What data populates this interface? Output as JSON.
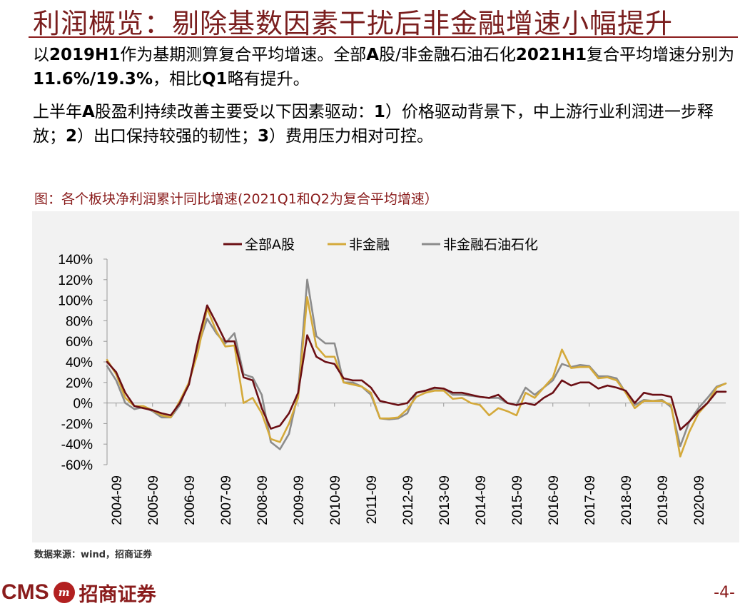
{
  "slide": {
    "title": "利润概览：剔除基数因素干扰后非金融增速小幅提升",
    "para1": [
      {
        "t": "以",
        "b": false
      },
      {
        "t": "2019H1",
        "b": true
      },
      {
        "t": "作为基期测算复合平均增速。全部",
        "b": false
      },
      {
        "t": "A",
        "b": true
      },
      {
        "t": "股/非金融石油石化",
        "b": false
      },
      {
        "t": "2021H1",
        "b": true
      },
      {
        "t": "复合平均增速分别为",
        "b": false
      },
      {
        "t": "11.6%/19.3%",
        "b": true
      },
      {
        "t": "，相比",
        "b": false
      },
      {
        "t": "Q1",
        "b": true
      },
      {
        "t": "略有提升。",
        "b": false
      }
    ],
    "para2": [
      {
        "t": "上半年",
        "b": false
      },
      {
        "t": "A",
        "b": true
      },
      {
        "t": "股盈利持续改善主要受以下因素驱动：",
        "b": false
      },
      {
        "t": "1",
        "b": true
      },
      {
        "t": "）价格驱动背景下，中上游行业利润进一步释放；",
        "b": false
      },
      {
        "t": "2",
        "b": true
      },
      {
        "t": "）出口保持较强的韧性；",
        "b": false
      },
      {
        "t": "3",
        "b": true
      },
      {
        "t": "）费用压力相对可控。",
        "b": false
      }
    ],
    "chart_caption": "图：各个板块净利润累计同比增速(2021Q1和Q2为复合平均增速）",
    "source": "数据来源：wind，招商证券",
    "brand_cms": "CMS",
    "brand_logo": "m",
    "brand_name": "招商证券",
    "page_number": "-4-"
  },
  "colors": {
    "title": "#7a1e1e",
    "all_a": "#6b0f14",
    "non_fin": "#d4a93a",
    "non_fin_ex_oil": "#8c8c8c",
    "chart_bg": "#f2f2f2"
  },
  "chart_data": {
    "type": "line",
    "title": "",
    "xlabel": "",
    "ylabel": "",
    "ylim": [
      -60,
      140
    ],
    "yticks": [
      "140%",
      "120%",
      "100%",
      "80%",
      "60%",
      "40%",
      "20%",
      "0%",
      "-20%",
      "-40%",
      "-60%"
    ],
    "ytick_values": [
      140,
      120,
      100,
      80,
      60,
      40,
      20,
      0,
      -20,
      -40,
      -60
    ],
    "x_range": [
      2004.5,
      2021.5
    ],
    "xtick_labels": [
      "2004-09",
      "2005-09",
      "2006-09",
      "2007-09",
      "2008-09",
      "2009-09",
      "2010-09",
      "2011-09",
      "2012-09",
      "2013-09",
      "2014-09",
      "2015-09",
      "2016-09",
      "2017-09",
      "2018-09",
      "2019-09",
      "2020-09"
    ],
    "xtick_values": [
      2004.75,
      2005.75,
      2006.75,
      2007.75,
      2008.75,
      2009.75,
      2010.75,
      2011.75,
      2012.75,
      2013.75,
      2014.75,
      2015.75,
      2016.75,
      2017.75,
      2018.75,
      2019.75,
      2020.75
    ],
    "legend_position": "top",
    "grid": false,
    "series": [
      {
        "name": "全部A股",
        "color_key": "all_a",
        "points": [
          [
            2004.5,
            40
          ],
          [
            2004.75,
            30
          ],
          [
            2005.0,
            10
          ],
          [
            2005.25,
            -3
          ],
          [
            2005.5,
            -5
          ],
          [
            2005.75,
            -7
          ],
          [
            2006.0,
            -10
          ],
          [
            2006.25,
            -12
          ],
          [
            2006.5,
            0
          ],
          [
            2006.75,
            18
          ],
          [
            2007.0,
            60
          ],
          [
            2007.25,
            95
          ],
          [
            2007.5,
            78
          ],
          [
            2007.75,
            60
          ],
          [
            2008.0,
            60
          ],
          [
            2008.25,
            25
          ],
          [
            2008.5,
            22
          ],
          [
            2008.75,
            -5
          ],
          [
            2009.0,
            -25
          ],
          [
            2009.25,
            -22
          ],
          [
            2009.5,
            -10
          ],
          [
            2009.75,
            10
          ],
          [
            2010.0,
            66
          ],
          [
            2010.25,
            45
          ],
          [
            2010.5,
            40
          ],
          [
            2010.75,
            38
          ],
          [
            2011.0,
            24
          ],
          [
            2011.25,
            22
          ],
          [
            2011.5,
            22
          ],
          [
            2011.75,
            15
          ],
          [
            2012.0,
            2
          ],
          [
            2012.25,
            0
          ],
          [
            2012.5,
            -2
          ],
          [
            2012.75,
            0
          ],
          [
            2013.0,
            10
          ],
          [
            2013.25,
            12
          ],
          [
            2013.5,
            15
          ],
          [
            2013.75,
            14
          ],
          [
            2014.0,
            10
          ],
          [
            2014.25,
            10
          ],
          [
            2014.5,
            8
          ],
          [
            2014.75,
            6
          ],
          [
            2015.0,
            5
          ],
          [
            2015.25,
            8
          ],
          [
            2015.5,
            0
          ],
          [
            2015.75,
            -2
          ],
          [
            2016.0,
            0
          ],
          [
            2016.25,
            -2
          ],
          [
            2016.5,
            5
          ],
          [
            2016.75,
            10
          ],
          [
            2017.0,
            22
          ],
          [
            2017.25,
            17
          ],
          [
            2017.5,
            20
          ],
          [
            2017.75,
            20
          ],
          [
            2018.0,
            14
          ],
          [
            2018.25,
            17
          ],
          [
            2018.5,
            15
          ],
          [
            2018.75,
            12
          ],
          [
            2019.0,
            0
          ],
          [
            2019.25,
            10
          ],
          [
            2019.5,
            8
          ],
          [
            2019.75,
            8
          ],
          [
            2020.0,
            6
          ],
          [
            2020.25,
            -26
          ],
          [
            2020.5,
            -18
          ],
          [
            2020.75,
            -8
          ],
          [
            2021.0,
            0
          ],
          [
            2021.25,
            11
          ],
          [
            2021.5,
            11
          ]
        ]
      },
      {
        "name": "非金融",
        "color_key": "non_fin",
        "points": [
          [
            2004.5,
            42
          ],
          [
            2004.75,
            28
          ],
          [
            2005.0,
            5
          ],
          [
            2005.25,
            -3
          ],
          [
            2005.5,
            -3
          ],
          [
            2005.75,
            -7
          ],
          [
            2006.0,
            -12
          ],
          [
            2006.25,
            -14
          ],
          [
            2006.5,
            2
          ],
          [
            2006.75,
            20
          ],
          [
            2007.0,
            50
          ],
          [
            2007.25,
            92
          ],
          [
            2007.5,
            70
          ],
          [
            2007.75,
            55
          ],
          [
            2008.0,
            56
          ],
          [
            2008.25,
            0
          ],
          [
            2008.5,
            5
          ],
          [
            2008.75,
            -10
          ],
          [
            2009.0,
            -35
          ],
          [
            2009.25,
            -38
          ],
          [
            2009.5,
            -20
          ],
          [
            2009.75,
            5
          ],
          [
            2010.0,
            103
          ],
          [
            2010.25,
            55
          ],
          [
            2010.5,
            45
          ],
          [
            2010.75,
            45
          ],
          [
            2011.0,
            20
          ],
          [
            2011.25,
            18
          ],
          [
            2011.5,
            16
          ],
          [
            2011.75,
            10
          ],
          [
            2012.0,
            -15
          ],
          [
            2012.25,
            -15
          ],
          [
            2012.5,
            -14
          ],
          [
            2012.75,
            -6
          ],
          [
            2013.0,
            6
          ],
          [
            2013.25,
            10
          ],
          [
            2013.5,
            12
          ],
          [
            2013.75,
            12
          ],
          [
            2014.0,
            4
          ],
          [
            2014.25,
            5
          ],
          [
            2014.5,
            0
          ],
          [
            2014.75,
            -2
          ],
          [
            2015.0,
            -12
          ],
          [
            2015.25,
            -5
          ],
          [
            2015.5,
            -8
          ],
          [
            2015.75,
            -12
          ],
          [
            2016.0,
            10
          ],
          [
            2016.25,
            5
          ],
          [
            2016.5,
            15
          ],
          [
            2016.75,
            25
          ],
          [
            2017.0,
            52
          ],
          [
            2017.25,
            34
          ],
          [
            2017.5,
            35
          ],
          [
            2017.75,
            35
          ],
          [
            2018.0,
            24
          ],
          [
            2018.25,
            25
          ],
          [
            2018.5,
            22
          ],
          [
            2018.75,
            10
          ],
          [
            2019.0,
            -5
          ],
          [
            2019.25,
            2
          ],
          [
            2019.5,
            2
          ],
          [
            2019.75,
            2
          ],
          [
            2020.0,
            -2
          ],
          [
            2020.25,
            -52
          ],
          [
            2020.5,
            -28
          ],
          [
            2020.75,
            -10
          ],
          [
            2021.0,
            0
          ],
          [
            2021.25,
            15
          ],
          [
            2021.5,
            19
          ]
        ]
      },
      {
        "name": "非金融石油石化",
        "color_key": "non_fin_ex_oil",
        "points": [
          [
            2004.5,
            36
          ],
          [
            2004.75,
            22
          ],
          [
            2005.0,
            0
          ],
          [
            2005.25,
            -6
          ],
          [
            2005.5,
            -4
          ],
          [
            2005.75,
            -8
          ],
          [
            2006.0,
            -14
          ],
          [
            2006.25,
            -14
          ],
          [
            2006.5,
            -2
          ],
          [
            2006.75,
            20
          ],
          [
            2007.0,
            55
          ],
          [
            2007.25,
            82
          ],
          [
            2007.5,
            68
          ],
          [
            2007.75,
            58
          ],
          [
            2008.0,
            68
          ],
          [
            2008.25,
            28
          ],
          [
            2008.5,
            25
          ],
          [
            2008.75,
            8
          ],
          [
            2009.0,
            -38
          ],
          [
            2009.25,
            -45
          ],
          [
            2009.5,
            -30
          ],
          [
            2009.75,
            10
          ],
          [
            2010.0,
            120
          ],
          [
            2010.25,
            65
          ],
          [
            2010.5,
            58
          ],
          [
            2010.75,
            58
          ],
          [
            2011.0,
            20
          ],
          [
            2011.25,
            20
          ],
          [
            2011.5,
            16
          ],
          [
            2011.75,
            8
          ],
          [
            2012.0,
            -15
          ],
          [
            2012.25,
            -16
          ],
          [
            2012.5,
            -15
          ],
          [
            2012.75,
            -10
          ],
          [
            2013.0,
            10
          ],
          [
            2013.25,
            12
          ],
          [
            2013.5,
            14
          ],
          [
            2013.75,
            14
          ],
          [
            2014.0,
            8
          ],
          [
            2014.25,
            8
          ],
          [
            2014.5,
            7
          ],
          [
            2014.75,
            6
          ],
          [
            2015.0,
            5
          ],
          [
            2015.25,
            5
          ],
          [
            2015.5,
            0
          ],
          [
            2015.75,
            -2
          ],
          [
            2016.0,
            15
          ],
          [
            2016.25,
            8
          ],
          [
            2016.5,
            15
          ],
          [
            2016.75,
            22
          ],
          [
            2017.0,
            38
          ],
          [
            2017.25,
            35
          ],
          [
            2017.5,
            37
          ],
          [
            2017.75,
            36
          ],
          [
            2018.0,
            26
          ],
          [
            2018.25,
            26
          ],
          [
            2018.5,
            24
          ],
          [
            2018.75,
            10
          ],
          [
            2019.0,
            -2
          ],
          [
            2019.25,
            3
          ],
          [
            2019.5,
            2
          ],
          [
            2019.75,
            3
          ],
          [
            2020.0,
            -4
          ],
          [
            2020.25,
            -42
          ],
          [
            2020.5,
            -18
          ],
          [
            2020.75,
            -5
          ],
          [
            2021.0,
            5
          ],
          [
            2021.25,
            16
          ],
          [
            2021.5,
            19
          ]
        ]
      }
    ]
  }
}
